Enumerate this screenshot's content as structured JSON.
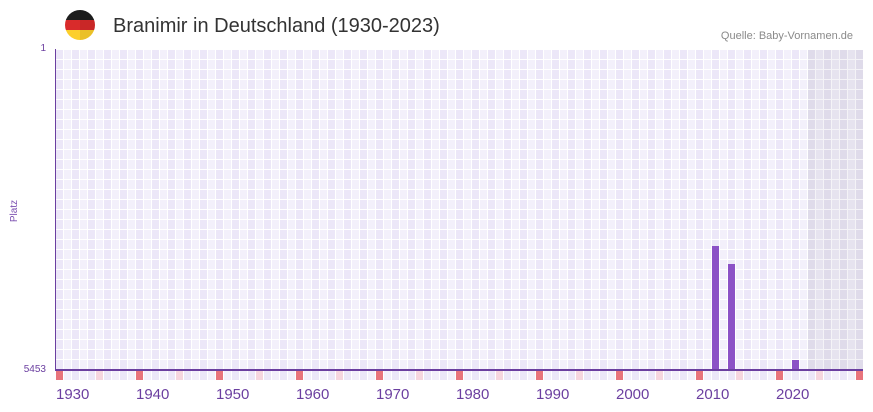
{
  "header": {
    "flag_icon": "germany-flag-icon",
    "title": "Branimir in Deutschland (1930-2023)",
    "source": "Quelle: Baby-Vornamen.de"
  },
  "colors": {
    "bar": "#8c52c6",
    "axis": "#6b3fa0",
    "decade_marker": "#e8747c",
    "half_decade_marker": "#f6d6df",
    "grid_dark": "#ece7f8",
    "grid_light": "#f3f0fb",
    "future_shade": "#dfdbea"
  },
  "chart_data": {
    "type": "bar",
    "title": "Branimir in Deutschland (1930-2023)",
    "xlabel": "",
    "ylabel": "Platz",
    "y_tick_labels": [
      "1",
      "5453"
    ],
    "ylim": [
      5453,
      1
    ],
    "xlim": [
      1930,
      2030
    ],
    "x_tick_labels": [
      "1930",
      "1940",
      "1950",
      "1960",
      "1970",
      "1980",
      "1990",
      "2000",
      "2010",
      "2020"
    ],
    "grid": true,
    "shaded_range": [
      2024,
      2030
    ],
    "x": [
      2012,
      2014,
      2022
    ],
    "values": [
      3340,
      3647,
      5283
    ],
    "points": [
      {
        "year": 2012,
        "rank": 3340
      },
      {
        "year": 2014,
        "rank": 3647
      },
      {
        "year": 2022,
        "rank": 5283
      }
    ]
  }
}
